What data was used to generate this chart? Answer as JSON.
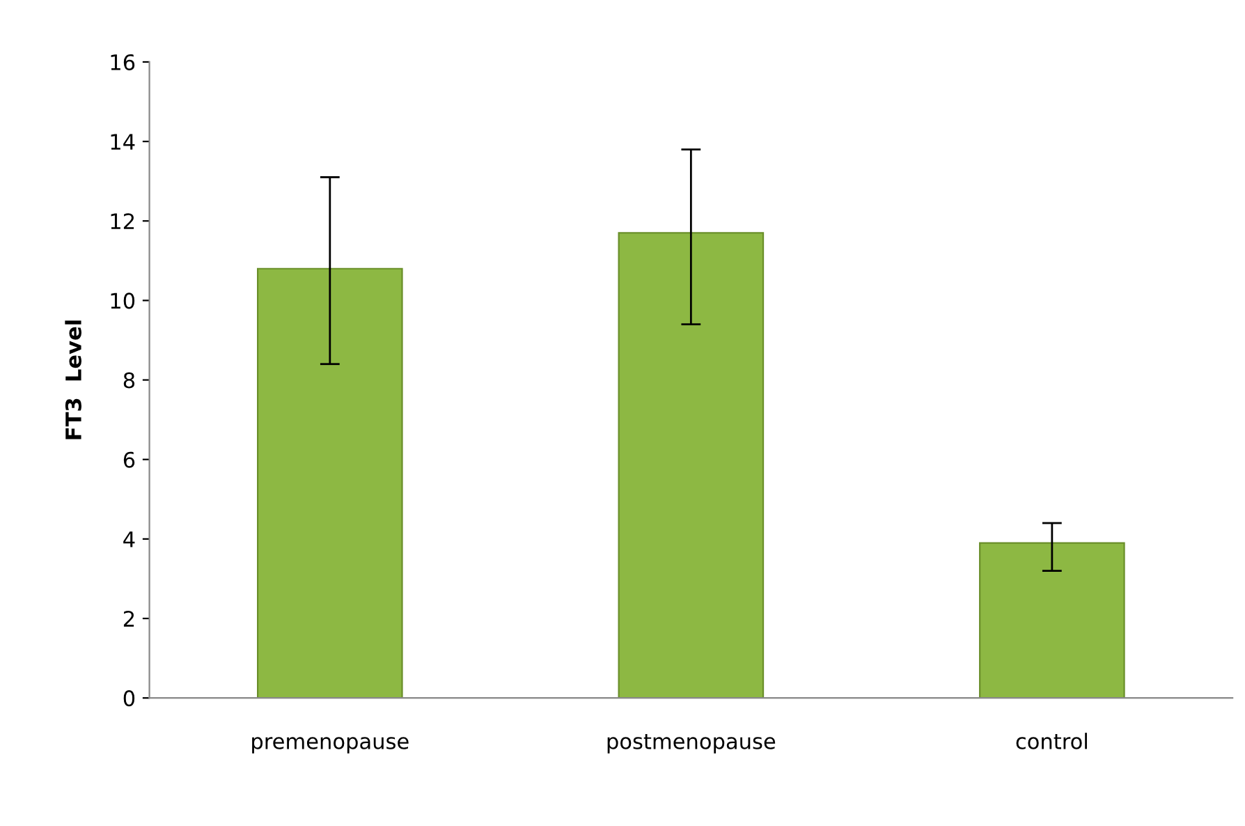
{
  "chart_data": {
    "type": "bar",
    "ylabel": "FT3  Level",
    "categories": [
      "premenopause",
      "postmenopause",
      "control"
    ],
    "values": [
      10.8,
      11.7,
      3.9
    ],
    "errors": [
      [
        8.4,
        13.1
      ],
      [
        9.4,
        13.8
      ],
      [
        3.2,
        4.4
      ]
    ],
    "color": "#8db843",
    "ylim": [
      0,
      16
    ],
    "yticks": [
      0,
      2,
      4,
      6,
      8,
      10,
      12,
      14,
      16
    ],
    "grid": false,
    "legend": false
  }
}
